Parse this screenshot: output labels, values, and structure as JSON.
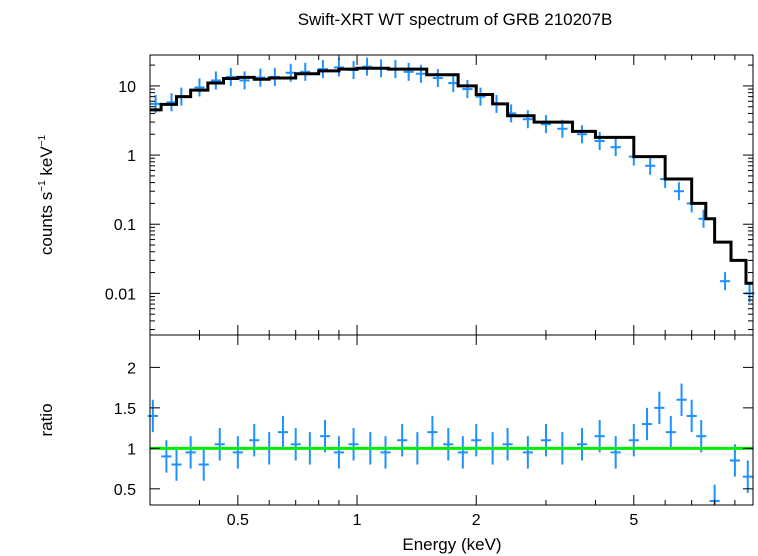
{
  "chart_data": {
    "type": "scatter",
    "title": "Swift-XRT WT spectrum of GRB 210207B",
    "xlabel": "Energy (keV)",
    "xscale": "log",
    "xlim": [
      0.3,
      10
    ],
    "xticks": [
      {
        "value": 0.5,
        "label": "0.5"
      },
      {
        "value": 1,
        "label": "1"
      },
      {
        "value": 2,
        "label": "2"
      },
      {
        "value": 5,
        "label": "5"
      }
    ],
    "colors": {
      "data": "#1e90ff",
      "model": "#000000",
      "unity": "#00ee00"
    },
    "panels": [
      {
        "name": "spectrum",
        "ylabel_main": "counts s",
        "ylabel_sup1": "−1",
        "ylabel_mid": " keV",
        "ylabel_sup2": "−1",
        "yscale": "log",
        "ylim": [
          0.0025,
          28
        ],
        "yticks": [
          {
            "value": 10,
            "label": "10"
          },
          {
            "value": 1,
            "label": "1"
          },
          {
            "value": 0.1,
            "label": "0.1"
          },
          {
            "value": 0.01,
            "label": "0.01"
          }
        ],
        "model": [
          [
            0.3,
            4.5
          ],
          [
            0.32,
            5.4
          ],
          [
            0.35,
            7.0
          ],
          [
            0.38,
            8.7
          ],
          [
            0.42,
            11.0
          ],
          [
            0.46,
            12.8
          ],
          [
            0.5,
            13.3
          ],
          [
            0.55,
            12.5
          ],
          [
            0.6,
            13.0
          ],
          [
            0.7,
            15.0
          ],
          [
            0.8,
            16.5
          ],
          [
            0.9,
            17.5
          ],
          [
            1.0,
            18.0
          ],
          [
            1.2,
            17.5
          ],
          [
            1.5,
            14.5
          ],
          [
            1.8,
            10.0
          ],
          [
            2.0,
            7.5
          ],
          [
            2.2,
            5.5
          ],
          [
            2.4,
            3.7
          ],
          [
            2.8,
            3.0
          ],
          [
            3.5,
            2.2
          ],
          [
            4.0,
            1.8
          ],
          [
            5.0,
            0.95
          ],
          [
            6.0,
            0.45
          ],
          [
            7.0,
            0.2
          ],
          [
            7.6,
            0.12
          ],
          [
            8.0,
            0.055
          ],
          [
            8.8,
            0.03
          ],
          [
            9.6,
            0.014
          ],
          [
            10.0,
            0.014
          ]
        ],
        "points": [
          [
            0.31,
            5.5
          ],
          [
            0.34,
            5.8
          ],
          [
            0.36,
            7.0
          ],
          [
            0.4,
            9.5
          ],
          [
            0.44,
            12.0
          ],
          [
            0.48,
            13.5
          ],
          [
            0.52,
            12.0
          ],
          [
            0.57,
            13.2
          ],
          [
            0.62,
            13.5
          ],
          [
            0.68,
            15.5
          ],
          [
            0.74,
            16.0
          ],
          [
            0.82,
            17.5
          ],
          [
            0.9,
            18.5
          ],
          [
            0.98,
            17.0
          ],
          [
            1.06,
            19.0
          ],
          [
            1.15,
            18.0
          ],
          [
            1.25,
            17.5
          ],
          [
            1.35,
            16.0
          ],
          [
            1.45,
            15.0
          ],
          [
            1.6,
            13.0
          ],
          [
            1.75,
            11.0
          ],
          [
            1.9,
            9.0
          ],
          [
            2.05,
            7.0
          ],
          [
            2.25,
            5.5
          ],
          [
            2.45,
            4.0
          ],
          [
            2.7,
            3.3
          ],
          [
            3.0,
            2.8
          ],
          [
            3.3,
            2.4
          ],
          [
            3.7,
            2.0
          ],
          [
            4.1,
            1.6
          ],
          [
            4.5,
            1.3
          ],
          [
            5.0,
            0.95
          ],
          [
            5.5,
            0.7
          ],
          [
            6.0,
            0.45
          ],
          [
            6.5,
            0.3
          ],
          [
            7.0,
            0.2
          ],
          [
            7.5,
            0.12
          ],
          [
            8.5,
            0.015
          ],
          [
            9.8,
            0.01
          ]
        ]
      },
      {
        "name": "ratio",
        "ylabel": "ratio",
        "yscale": "linear",
        "ylim": [
          0.3,
          2.4
        ],
        "yticks": [
          {
            "value": 0.5,
            "label": "0.5"
          },
          {
            "value": 1,
            "label": "1"
          },
          {
            "value": 1.5,
            "label": "1.5"
          },
          {
            "value": 2,
            "label": "2"
          }
        ],
        "unity": 1,
        "points": [
          [
            0.305,
            1.4
          ],
          [
            0.33,
            0.9
          ],
          [
            0.35,
            0.8
          ],
          [
            0.38,
            0.95
          ],
          [
            0.41,
            0.8
          ],
          [
            0.45,
            1.05
          ],
          [
            0.5,
            0.95
          ],
          [
            0.55,
            1.1
          ],
          [
            0.6,
            1.0
          ],
          [
            0.65,
            1.2
          ],
          [
            0.7,
            1.05
          ],
          [
            0.76,
            1.0
          ],
          [
            0.83,
            1.15
          ],
          [
            0.9,
            0.95
          ],
          [
            0.98,
            1.05
          ],
          [
            1.08,
            1.0
          ],
          [
            1.18,
            0.95
          ],
          [
            1.3,
            1.1
          ],
          [
            1.42,
            1.0
          ],
          [
            1.55,
            1.2
          ],
          [
            1.7,
            1.05
          ],
          [
            1.85,
            0.95
          ],
          [
            2.0,
            1.1
          ],
          [
            2.2,
            1.0
          ],
          [
            2.4,
            1.05
          ],
          [
            2.7,
            0.95
          ],
          [
            3.0,
            1.1
          ],
          [
            3.3,
            1.0
          ],
          [
            3.7,
            1.05
          ],
          [
            4.1,
            1.15
          ],
          [
            4.5,
            0.95
          ],
          [
            5.0,
            1.1
          ],
          [
            5.4,
            1.3
          ],
          [
            5.8,
            1.5
          ],
          [
            6.2,
            1.2
          ],
          [
            6.6,
            1.6
          ],
          [
            7.0,
            1.4
          ],
          [
            7.4,
            1.15
          ],
          [
            8.0,
            0.35
          ],
          [
            9.0,
            0.85
          ],
          [
            9.7,
            0.65
          ]
        ]
      }
    ]
  }
}
